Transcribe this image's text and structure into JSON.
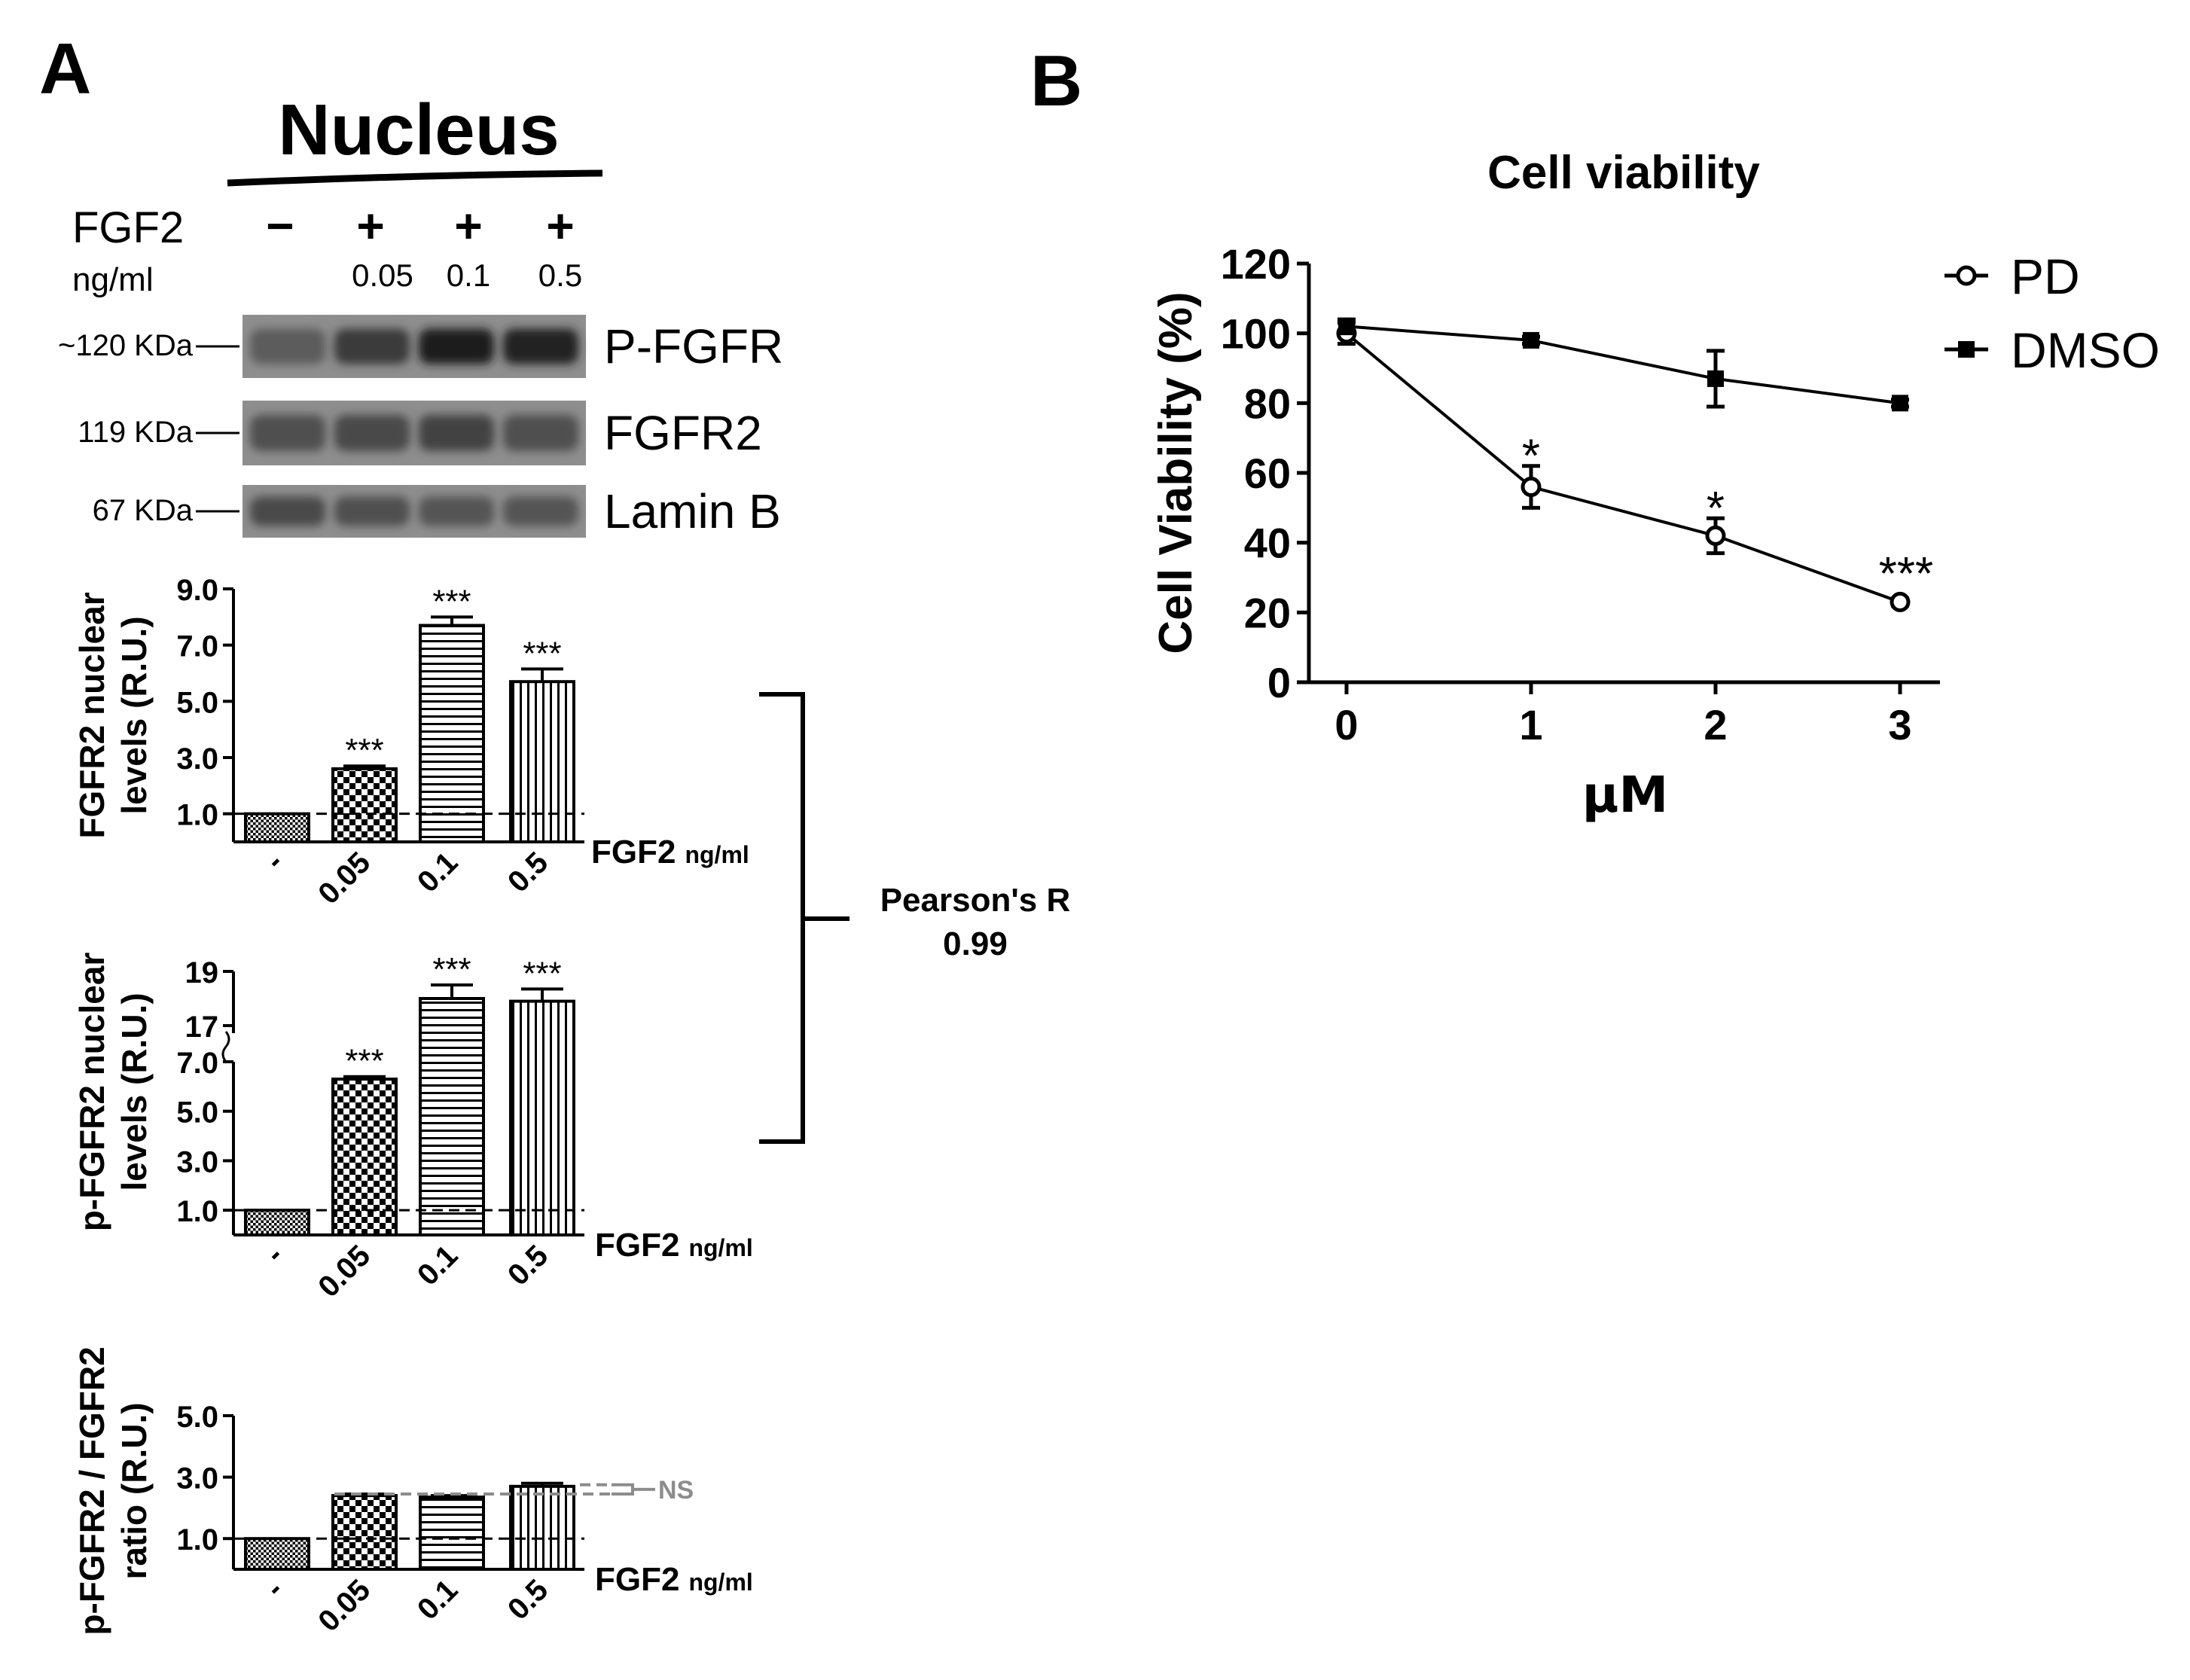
{
  "panel_a": {
    "label": "A",
    "blot": {
      "title": "Nucleus",
      "treatment_label": "FGF2",
      "unit_label": "ng/ml",
      "lanes": [
        {
          "sign": "−",
          "dose": ""
        },
        {
          "sign": "+",
          "dose": "0.05"
        },
        {
          "sign": "+",
          "dose": "0.1"
        },
        {
          "sign": "+",
          "dose": "0.5"
        }
      ],
      "rows": [
        {
          "marker": "~120 KDa",
          "protein": "P-FGFR",
          "band_intensity": [
            0.45,
            0.7,
            0.95,
            0.9
          ]
        },
        {
          "marker": "119 KDa",
          "protein": "FGFR2",
          "band_intensity": [
            0.55,
            0.6,
            0.65,
            0.55
          ]
        },
        {
          "marker": "67 KDa",
          "protein": "Lamin B",
          "band_intensity": [
            0.6,
            0.55,
            0.5,
            0.5
          ]
        }
      ]
    },
    "correlation": {
      "label": "Pearson's R",
      "value": "0.99"
    },
    "ns_label": "NS"
  },
  "panel_b": {
    "label": "B"
  },
  "colors": {
    "ink": "#000000",
    "gel": "#3a3a3a",
    "ns_grey": "#8c8c8c"
  },
  "chart_data": [
    {
      "type": "bar",
      "ylabel": "FGFR2 nuclear levels (R.U.)",
      "xlabel_main": "FGF2",
      "xlabel_unit": "ng/ml",
      "categories": [
        "-",
        "0.05",
        "0.1",
        "0.5"
      ],
      "values": [
        1.0,
        2.6,
        7.7,
        5.7
      ],
      "errors": [
        0,
        0.1,
        0.3,
        0.45
      ],
      "significance": [
        "",
        "***",
        "***",
        "***"
      ],
      "yticks": [
        "1.0",
        "3.0",
        "5.0",
        "7.0",
        "9.0"
      ],
      "ylim": [
        0,
        9
      ],
      "reference_line": 1.0,
      "patterns": [
        "dots",
        "checker",
        "horizontal",
        "vertical"
      ]
    },
    {
      "type": "bar",
      "ylabel": "p-FGFR2 nuclear levels (R.U.)",
      "xlabel_main": "FGF2",
      "xlabel_unit": "ng/ml",
      "categories": [
        "-",
        "0.05",
        "0.1",
        "0.5"
      ],
      "values": [
        1.0,
        6.3,
        18.0,
        17.9
      ],
      "errors": [
        0,
        0.1,
        0.5,
        0.45
      ],
      "significance": [
        "",
        "***",
        "***",
        "***"
      ],
      "yticks": [
        "1.0",
        "3.0",
        "5.0",
        "7.0",
        "17",
        "19"
      ],
      "ylim": [
        0,
        19
      ],
      "axis_break": [
        7,
        16.5
      ],
      "reference_line": 1.0,
      "patterns": [
        "dots",
        "checker",
        "horizontal",
        "vertical"
      ]
    },
    {
      "type": "bar",
      "ylabel": "p-FGFR2 / FGFR2 ratio (R.U.)",
      "xlabel_main": "FGF2",
      "xlabel_unit": "ng/ml",
      "categories": [
        "-",
        "0.05",
        "0.1",
        "0.5"
      ],
      "values": [
        1.0,
        2.4,
        2.35,
        2.7
      ],
      "errors": [
        0,
        0.05,
        0.05,
        0.1
      ],
      "significance": [
        "",
        "",
        "",
        ""
      ],
      "yticks": [
        "1.0",
        "3.0",
        "5.0"
      ],
      "ylim": [
        0,
        5
      ],
      "reference_line": 1.0,
      "patterns": [
        "dots",
        "checker",
        "horizontal",
        "vertical"
      ]
    },
    {
      "type": "line",
      "title": "Cell viability",
      "xlabel": "μM",
      "ylabel": "Cell Viability (%)",
      "x": [
        0,
        1,
        2,
        3
      ],
      "xticks": [
        "0",
        "1",
        "2",
        "3"
      ],
      "yticks": [
        "0",
        "20",
        "40",
        "60",
        "80",
        "100",
        "120"
      ],
      "xlim": [
        0,
        3
      ],
      "ylim": [
        0,
        120
      ],
      "legend_position": "top-right",
      "series": [
        {
          "name": "PD",
          "marker": "open-circle",
          "values": [
            100,
            56,
            42,
            23
          ],
          "errors": [
            3,
            6,
            5,
            1
          ],
          "significance": [
            "",
            "*",
            "*",
            "***"
          ]
        },
        {
          "name": "DMSO",
          "marker": "filled-square",
          "values": [
            102,
            98,
            87,
            80
          ],
          "errors": [
            2,
            1,
            8,
            1
          ],
          "significance": [
            "",
            "",
            "",
            ""
          ]
        }
      ]
    }
  ]
}
